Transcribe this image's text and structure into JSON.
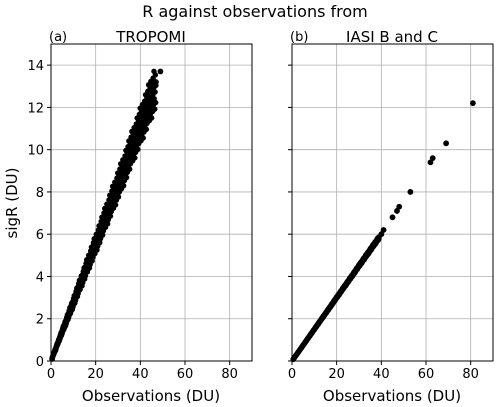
{
  "figure": {
    "title": "R against observations from"
  },
  "chart_data": [
    {
      "type": "scatter",
      "panel_label": "(a)",
      "title": "TROPOMI",
      "xlabel": "Observations (DU)",
      "ylabel": "sigR (DU)",
      "xlim": [
        0,
        90
      ],
      "ylim": [
        0,
        15
      ],
      "xticks": [
        0,
        20,
        40,
        60,
        80
      ],
      "yticks": [
        0,
        2,
        4,
        6,
        8,
        10,
        12,
        14
      ],
      "grid": true,
      "marker_color": "#000000",
      "band": {
        "x_start": 0.5,
        "x_end": 47,
        "slope_low": 0.255,
        "slope_high": 0.3
      },
      "points": [
        [
          0.5,
          0.1
        ],
        [
          2,
          0.5
        ],
        [
          4,
          1.1
        ],
        [
          6,
          1.6
        ],
        [
          8,
          2.2
        ],
        [
          10,
          2.8
        ],
        [
          12,
          3.3
        ],
        [
          14,
          3.9
        ],
        [
          16,
          4.5
        ],
        [
          18,
          5.0
        ],
        [
          20,
          5.6
        ],
        [
          22,
          6.2
        ],
        [
          24,
          6.7
        ],
        [
          26,
          7.3
        ],
        [
          28,
          8.0
        ],
        [
          30,
          8.5
        ],
        [
          32,
          9.0
        ],
        [
          34,
          9.7
        ],
        [
          36,
          10.2
        ],
        [
          38,
          10.8
        ],
        [
          40,
          11.4
        ],
        [
          42,
          11.9
        ],
        [
          44,
          12.5
        ],
        [
          45.5,
          12.7
        ],
        [
          47,
          13.2
        ],
        [
          49,
          13.7
        ]
      ]
    },
    {
      "type": "scatter",
      "panel_label": "(b)",
      "title": "IASI B and C",
      "xlabel": "Observations (DU)",
      "ylabel": "",
      "xlim": [
        0,
        90
      ],
      "ylim": [
        0,
        15
      ],
      "xticks": [
        0,
        20,
        40,
        60,
        80
      ],
      "yticks": [
        0,
        2,
        4,
        6,
        8,
        10,
        12,
        14
      ],
      "grid": true,
      "marker_color": "#000000",
      "band": {
        "x_start": 0.5,
        "x_end": 39,
        "slope_low": 0.148,
        "slope_high": 0.152
      },
      "points": [
        [
          40,
          6.0
        ],
        [
          41,
          6.2
        ],
        [
          45,
          6.8
        ],
        [
          47,
          7.1
        ],
        [
          48,
          7.3
        ],
        [
          53,
          8.0
        ],
        [
          62,
          9.4
        ],
        [
          63,
          9.6
        ],
        [
          69,
          10.3
        ],
        [
          81,
          12.2
        ]
      ]
    }
  ]
}
